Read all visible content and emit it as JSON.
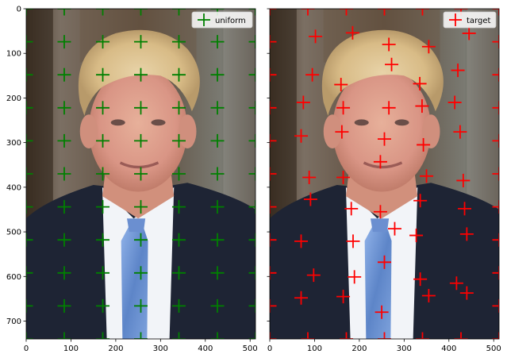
{
  "chart_data": [
    {
      "type": "scatter",
      "title": "",
      "background": "photo",
      "xlim": [
        0,
        512
      ],
      "ylim": [
        740,
        0
      ],
      "xticks": [
        0,
        100,
        200,
        300,
        400,
        500
      ],
      "yticks": [
        0,
        100,
        200,
        300,
        400,
        500,
        600,
        700
      ],
      "legend": "top-right",
      "series": [
        {
          "name": "uniform",
          "color": "#008000",
          "marker": "plus",
          "points": [
            [
              0,
              0
            ],
            [
              85,
              0
            ],
            [
              171,
              0
            ],
            [
              256,
              0
            ],
            [
              341,
              0
            ],
            [
              427,
              0
            ],
            [
              512,
              0
            ],
            [
              0,
              74
            ],
            [
              85,
              74
            ],
            [
              171,
              74
            ],
            [
              256,
              74
            ],
            [
              341,
              74
            ],
            [
              427,
              74
            ],
            [
              512,
              74
            ],
            [
              0,
              148
            ],
            [
              85,
              148
            ],
            [
              171,
              148
            ],
            [
              256,
              148
            ],
            [
              341,
              148
            ],
            [
              427,
              148
            ],
            [
              512,
              148
            ],
            [
              0,
              222
            ],
            [
              85,
              222
            ],
            [
              171,
              222
            ],
            [
              256,
              222
            ],
            [
              341,
              222
            ],
            [
              427,
              222
            ],
            [
              512,
              222
            ],
            [
              0,
              296
            ],
            [
              85,
              296
            ],
            [
              171,
              296
            ],
            [
              256,
              296
            ],
            [
              341,
              296
            ],
            [
              427,
              296
            ],
            [
              512,
              296
            ],
            [
              0,
              370
            ],
            [
              85,
              370
            ],
            [
              171,
              370
            ],
            [
              256,
              370
            ],
            [
              341,
              370
            ],
            [
              427,
              370
            ],
            [
              512,
              370
            ],
            [
              0,
              444
            ],
            [
              85,
              444
            ],
            [
              171,
              444
            ],
            [
              256,
              444
            ],
            [
              341,
              444
            ],
            [
              427,
              444
            ],
            [
              512,
              444
            ],
            [
              0,
              518
            ],
            [
              85,
              518
            ],
            [
              171,
              518
            ],
            [
              256,
              518
            ],
            [
              341,
              518
            ],
            [
              427,
              518
            ],
            [
              512,
              518
            ],
            [
              0,
              592
            ],
            [
              85,
              592
            ],
            [
              171,
              592
            ],
            [
              256,
              592
            ],
            [
              341,
              592
            ],
            [
              427,
              592
            ],
            [
              512,
              592
            ],
            [
              0,
              666
            ],
            [
              85,
              666
            ],
            [
              171,
              666
            ],
            [
              256,
              666
            ],
            [
              341,
              666
            ],
            [
              427,
              666
            ],
            [
              512,
              666
            ],
            [
              0,
              740
            ],
            [
              85,
              740
            ],
            [
              171,
              740
            ],
            [
              256,
              740
            ],
            [
              341,
              740
            ],
            [
              427,
              740
            ],
            [
              512,
              740
            ]
          ]
        }
      ]
    },
    {
      "type": "scatter",
      "title": "",
      "background": "photo",
      "xlim": [
        0,
        512
      ],
      "ylim": [
        740,
        0
      ],
      "xticks": [
        0,
        100,
        200,
        300,
        400,
        500
      ],
      "yticks": [],
      "legend": "top-right",
      "series": [
        {
          "name": "target",
          "color": "#ff0000",
          "marker": "plus",
          "points": [
            [
              0,
              0
            ],
            [
              85,
              0
            ],
            [
              171,
              0
            ],
            [
              256,
              0
            ],
            [
              341,
              0
            ],
            [
              427,
              0
            ],
            [
              512,
              0
            ],
            [
              0,
              74
            ],
            [
              102,
              62
            ],
            [
              185,
              54
            ],
            [
              266,
              80
            ],
            [
              355,
              85
            ],
            [
              445,
              55
            ],
            [
              512,
              74
            ],
            [
              0,
              148
            ],
            [
              95,
              148
            ],
            [
              159,
              170
            ],
            [
              272,
              125
            ],
            [
              335,
              168
            ],
            [
              420,
              138
            ],
            [
              512,
              148
            ],
            [
              0,
              222
            ],
            [
              75,
              210
            ],
            [
              164,
              222
            ],
            [
              266,
              222
            ],
            [
              340,
              218
            ],
            [
              413,
              210
            ],
            [
              512,
              222
            ],
            [
              0,
              296
            ],
            [
              70,
              285
            ],
            [
              161,
              276
            ],
            [
              256,
              292
            ],
            [
              343,
              305
            ],
            [
              425,
              276
            ],
            [
              512,
              296
            ],
            [
              0,
              370
            ],
            [
              88,
              378
            ],
            [
              164,
              378
            ],
            [
              247,
              343
            ],
            [
              350,
              375
            ],
            [
              432,
              385
            ],
            [
              512,
              370
            ],
            [
              0,
              444
            ],
            [
              91,
              427
            ],
            [
              182,
              448
            ],
            [
              247,
              455
            ],
            [
              336,
              430
            ],
            [
              435,
              448
            ],
            [
              512,
              444
            ],
            [
              0,
              518
            ],
            [
              70,
              521
            ],
            [
              186,
              521
            ],
            [
              279,
              493
            ],
            [
              327,
              508
            ],
            [
              440,
              505
            ],
            [
              512,
              518
            ],
            [
              0,
              592
            ],
            [
              98,
              597
            ],
            [
              189,
              601
            ],
            [
              256,
              568
            ],
            [
              336,
              606
            ],
            [
              417,
              615
            ],
            [
              512,
              592
            ],
            [
              0,
              666
            ],
            [
              70,
              648
            ],
            [
              164,
              645
            ],
            [
              250,
              680
            ],
            [
              355,
              643
            ],
            [
              440,
              637
            ],
            [
              512,
              666
            ],
            [
              0,
              740
            ],
            [
              85,
              740
            ],
            [
              171,
              740
            ],
            [
              256,
              740
            ],
            [
              341,
              740
            ],
            [
              427,
              740
            ],
            [
              512,
              740
            ]
          ]
        }
      ]
    }
  ]
}
